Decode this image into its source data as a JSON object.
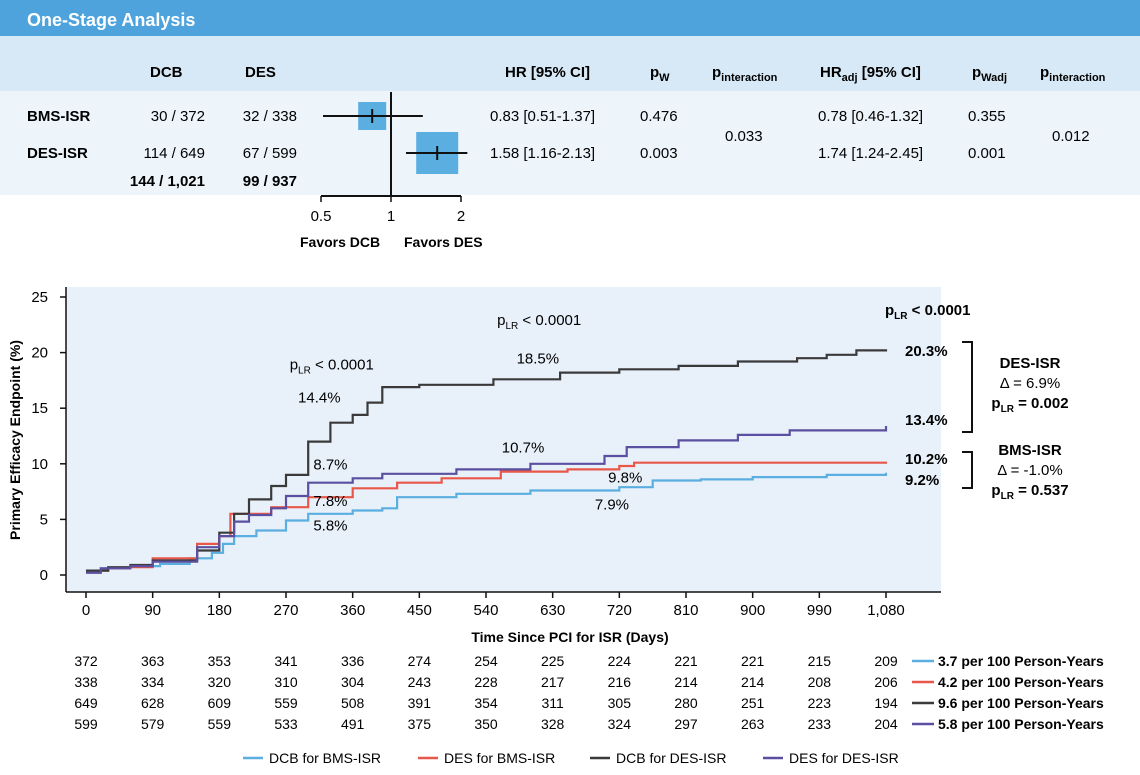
{
  "forest": {
    "title": "One-Stage Analysis",
    "columns": {
      "dcb": "DCB",
      "des": "DES",
      "hr": "HR [95% CI]",
      "pw_main": "p",
      "pw_sub": "W",
      "pint_main": "p",
      "pint_sub": "interaction",
      "hradj_main": "HR",
      "hradj_sub": "adj",
      "hradj_rest": " [95% CI]",
      "pwadj_main": "p",
      "pwadj_sub": "Wadj",
      "pint2_main": "p",
      "pint2_sub": "interaction"
    },
    "rows": [
      {
        "label": "BMS-ISR",
        "dcb": "30 / 372",
        "des": "32 / 338",
        "hr": 0.83,
        "lo": 0.51,
        "hi": 1.37,
        "hr_text": "0.83 [0.51-1.37]",
        "pw": "0.476",
        "hradj_text": "0.78 [0.46-1.32]",
        "pwadj": "0.355"
      },
      {
        "label": "DES-ISR",
        "dcb": "114 / 649",
        "des": "67 / 599",
        "hr": 1.58,
        "lo": 1.16,
        "hi": 2.13,
        "hr_text": "1.58 [1.16-2.13]",
        "pw": "0.003",
        "hradj_text": "1.74 [1.24-2.45]",
        "pwadj": "0.001"
      }
    ],
    "total": {
      "dcb": "144 / 1,021",
      "des": "99 / 937"
    },
    "p_interaction": "0.033",
    "p_interaction_adj": "0.012",
    "axis_ticks": [
      0.5,
      1,
      2
    ],
    "axis_tick_labels": [
      "0.5",
      "1",
      "2"
    ],
    "favors_left": "Favors DCB",
    "favors_right": "Favors DES",
    "box_color": "#5aaee0"
  },
  "chart_data": {
    "type": "line",
    "xlabel": "Time Since PCI for ISR (Days)",
    "ylabel": "Primary Efficacy Endpoint (%)",
    "xlim": [
      0,
      1080
    ],
    "ylim": [
      0,
      25
    ],
    "x_ticks": [
      0,
      90,
      180,
      270,
      360,
      450,
      540,
      630,
      720,
      810,
      900,
      990,
      1080
    ],
    "x_tick_labels": [
      "0",
      "90",
      "180",
      "270",
      "360",
      "450",
      "540",
      "630",
      "720",
      "810",
      "900",
      "990",
      "1,080"
    ],
    "y_ticks": [
      0,
      5,
      10,
      15,
      20,
      25
    ],
    "y_tick_labels": [
      "0",
      "5",
      "10",
      "15",
      "20",
      "25"
    ],
    "background": "#e8f1fa",
    "series": [
      {
        "name": "DCB for BMS-ISR",
        "color": "#5aaee0",
        "points": [
          [
            0,
            0.3
          ],
          [
            20,
            0.6
          ],
          [
            60,
            0.8
          ],
          [
            100,
            1.0
          ],
          [
            140,
            1.5
          ],
          [
            170,
            2.0
          ],
          [
            185,
            2.8
          ],
          [
            200,
            3.5
          ],
          [
            230,
            4.0
          ],
          [
            270,
            4.9
          ],
          [
            300,
            5.5
          ],
          [
            360,
            5.8
          ],
          [
            400,
            6.0
          ],
          [
            420,
            7.0
          ],
          [
            500,
            7.3
          ],
          [
            600,
            7.6
          ],
          [
            720,
            7.9
          ],
          [
            765,
            8.5
          ],
          [
            830,
            8.6
          ],
          [
            900,
            8.8
          ],
          [
            1000,
            9.0
          ],
          [
            1080,
            9.2
          ]
        ]
      },
      {
        "name": "DES for BMS-ISR",
        "color": "#e8574a",
        "points": [
          [
            0,
            0.4
          ],
          [
            30,
            0.6
          ],
          [
            60,
            0.7
          ],
          [
            90,
            1.5
          ],
          [
            150,
            2.8
          ],
          [
            180,
            3.5
          ],
          [
            195,
            5.5
          ],
          [
            250,
            6.1
          ],
          [
            300,
            7.0
          ],
          [
            360,
            7.8
          ],
          [
            420,
            8.3
          ],
          [
            480,
            8.7
          ],
          [
            560,
            9.3
          ],
          [
            650,
            9.5
          ],
          [
            720,
            9.8
          ],
          [
            740,
            10.1
          ],
          [
            900,
            10.1
          ],
          [
            1080,
            10.2
          ]
        ]
      },
      {
        "name": "DCB for DES-ISR",
        "color": "#3a3a3a",
        "points": [
          [
            0,
            0.4
          ],
          [
            30,
            0.7
          ],
          [
            60,
            0.9
          ],
          [
            90,
            1.3
          ],
          [
            150,
            2.2
          ],
          [
            180,
            3.8
          ],
          [
            200,
            5.5
          ],
          [
            220,
            6.8
          ],
          [
            250,
            8.0
          ],
          [
            270,
            9.0
          ],
          [
            300,
            12.0
          ],
          [
            330,
            13.7
          ],
          [
            360,
            14.4
          ],
          [
            380,
            15.5
          ],
          [
            400,
            16.9
          ],
          [
            450,
            17.1
          ],
          [
            550,
            17.6
          ],
          [
            640,
            18.2
          ],
          [
            720,
            18.5
          ],
          [
            800,
            18.8
          ],
          [
            880,
            19.2
          ],
          [
            960,
            19.5
          ],
          [
            1000,
            19.8
          ],
          [
            1040,
            20.2
          ],
          [
            1080,
            20.3
          ]
        ]
      },
      {
        "name": "DES for DES-ISR",
        "color": "#5a4fa0",
        "points": [
          [
            0,
            0.2
          ],
          [
            20,
            0.6
          ],
          [
            60,
            0.8
          ],
          [
            90,
            1.2
          ],
          [
            150,
            2.5
          ],
          [
            180,
            3.5
          ],
          [
            200,
            4.8
          ],
          [
            220,
            5.4
          ],
          [
            250,
            6.0
          ],
          [
            270,
            7.1
          ],
          [
            300,
            8.3
          ],
          [
            360,
            8.7
          ],
          [
            400,
            9.1
          ],
          [
            500,
            9.5
          ],
          [
            600,
            10.0
          ],
          [
            700,
            10.7
          ],
          [
            730,
            11.5
          ],
          [
            800,
            12.1
          ],
          [
            880,
            12.6
          ],
          [
            950,
            13.0
          ],
          [
            1080,
            13.4
          ]
        ]
      }
    ],
    "annotations": [
      {
        "text": "14.4%",
        "x": 315,
        "y": 15.5
      },
      {
        "text": "8.7%",
        "x": 330,
        "y": 9.5
      },
      {
        "text": "7.8%",
        "x": 330,
        "y": 6.2
      },
      {
        "text": "5.8%",
        "x": 330,
        "y": 4.0
      },
      {
        "text": "18.5%",
        "x": 610,
        "y": 19.0
      },
      {
        "text": "10.7%",
        "x": 590,
        "y": 11.0
      },
      {
        "text": "9.8%",
        "x": 728,
        "y": 8.3
      },
      {
        "text": "7.9%",
        "x": 710,
        "y": 5.9
      }
    ],
    "p_labels": [
      {
        "text_main": "p",
        "text_sub": "LR",
        "text_rest": " < 0.0001",
        "x": 275,
        "y": 18.5,
        "bold": false
      },
      {
        "text_main": "p",
        "text_sub": "LR",
        "text_rest": " < 0.0001",
        "x": 555,
        "y": 22.5,
        "bold": false
      }
    ],
    "right_labels": {
      "p_overall": {
        "main": "p",
        "sub": "LR",
        "rest": " < 0.0001"
      },
      "des_isr": {
        "top": "20.3%",
        "bottom": "13.4%",
        "group": "DES-ISR",
        "delta": "Δ = 6.9%",
        "p_main": "p",
        "p_sub": "LR",
        "p_rest": " = 0.002"
      },
      "bms_isr": {
        "top": "10.2%",
        "bottom": "9.2%",
        "group": "BMS-ISR",
        "delta": "Δ = -1.0%",
        "p_main": "p",
        "p_sub": "LR",
        "p_rest": " = 0.537"
      }
    },
    "at_risk": [
      {
        "values": [
          "372",
          "363",
          "353",
          "341",
          "336",
          "274",
          "254",
          "225",
          "224",
          "221",
          "221",
          "215",
          "209"
        ],
        "color": "#5aaee0",
        "legend": "3.7 per 100 Person-Years"
      },
      {
        "values": [
          "338",
          "334",
          "320",
          "310",
          "304",
          "243",
          "228",
          "217",
          "216",
          "214",
          "214",
          "208",
          "206"
        ],
        "color": "#e8574a",
        "legend": "4.2 per 100 Person-Years"
      },
      {
        "values": [
          "649",
          "628",
          "609",
          "559",
          "508",
          "391",
          "354",
          "311",
          "305",
          "280",
          "251",
          "223",
          "194"
        ],
        "color": "#3a3a3a",
        "legend": "9.6 per 100 Person-Years"
      },
      {
        "values": [
          "599",
          "579",
          "559",
          "533",
          "491",
          "375",
          "350",
          "328",
          "324",
          "297",
          "263",
          "233",
          "204"
        ],
        "color": "#5a4fa0",
        "legend": "5.8 per 100 Person-Years"
      }
    ],
    "legend": [
      "DCB for BMS-ISR",
      "DES for BMS-ISR",
      "DCB for DES-ISR",
      "DES for DES-ISR"
    ]
  }
}
